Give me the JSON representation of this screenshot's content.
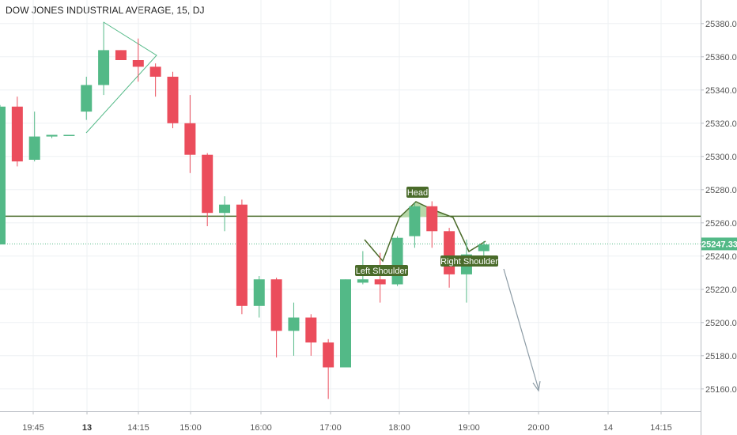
{
  "chart_data": {
    "type": "candlestick",
    "title": "DOW JONES INDUSTRIAL AVERAGE, 15, DJ",
    "xlabel": "",
    "ylabel": "",
    "ylim": [
      25142,
      25388
    ],
    "grid": true,
    "y_ticks": [
      25160,
      25180,
      25200,
      25220,
      25240,
      25260,
      25280,
      25300,
      25320,
      25340,
      25360,
      25380
    ],
    "y_tick_labels": [
      "25160.00",
      "25180.00",
      "25200.00",
      "25220.00",
      "25240.00",
      "25260.00",
      "25280.00",
      "25300.00",
      "25320.00",
      "25340.00",
      "25360.00",
      "25380.00"
    ],
    "x_ticks": [
      {
        "label": "19:45",
        "bold": false
      },
      {
        "label": "13",
        "bold": true
      },
      {
        "label": "14:15",
        "bold": false
      },
      {
        "label": "15:00",
        "bold": false
      },
      {
        "label": "16:00",
        "bold": false
      },
      {
        "label": "17:00",
        "bold": false
      },
      {
        "label": "18:00",
        "bold": false
      },
      {
        "label": "19:00",
        "bold": false
      },
      {
        "label": "20:00",
        "bold": false
      },
      {
        "label": "14",
        "bold": false
      },
      {
        "label": "14:15",
        "bold": false
      }
    ],
    "colors": {
      "up": "#53b987",
      "down": "#eb4d5c",
      "pattern": "#4a6b2a",
      "price_line": "#53b987",
      "arrow": "#8c9ba5",
      "grid": "#eef0f3"
    },
    "candles": [
      {
        "o": 25247,
        "h": 25331,
        "l": 25247,
        "c": 25330
      },
      {
        "o": 25330,
        "h": 25336,
        "l": 25294,
        "c": 25297
      },
      {
        "o": 25298,
        "h": 25327,
        "l": 25297,
        "c": 25312
      },
      {
        "o": 25312,
        "h": 25313,
        "l": 25311,
        "c": 25313
      },
      {
        "o": 25313,
        "h": 25313,
        "l": 25313,
        "c": 25313
      },
      {
        "o": 25327,
        "h": 25348,
        "l": 25322,
        "c": 25343
      },
      {
        "o": 25343,
        "h": 25381,
        "l": 25337,
        "c": 25364
      },
      {
        "o": 25364,
        "h": 25364,
        "l": 25358,
        "c": 25358
      },
      {
        "o": 25358,
        "h": 25371,
        "l": 25345,
        "c": 25354
      },
      {
        "o": 25354,
        "h": 25356,
        "l": 25336,
        "c": 25348
      },
      {
        "o": 25348,
        "h": 25351,
        "l": 25317,
        "c": 25320
      },
      {
        "o": 25320,
        "h": 25337,
        "l": 25290,
        "c": 25301
      },
      {
        "o": 25301,
        "h": 25302,
        "l": 25258,
        "c": 25266
      },
      {
        "o": 25266,
        "h": 25276,
        "l": 25255,
        "c": 25271
      },
      {
        "o": 25271,
        "h": 25274,
        "l": 25205,
        "c": 25210
      },
      {
        "o": 25210,
        "h": 25228,
        "l": 25203,
        "c": 25226
      },
      {
        "o": 25226,
        "h": 25227,
        "l": 25179,
        "c": 25195
      },
      {
        "o": 25195,
        "h": 25212,
        "l": 25180,
        "c": 25203
      },
      {
        "o": 25203,
        "h": 25205,
        "l": 25180,
        "c": 25188
      },
      {
        "o": 25188,
        "h": 25190,
        "l": 25154,
        "c": 25173
      },
      {
        "o": 25173,
        "h": 25226,
        "l": 25173,
        "c": 25226
      },
      {
        "o": 25224,
        "h": 25243,
        "l": 25223,
        "c": 25226
      },
      {
        "o": 25226,
        "h": 25242,
        "l": 25212,
        "c": 25223
      },
      {
        "o": 25223,
        "h": 25252,
        "l": 25222,
        "c": 25251
      },
      {
        "o": 25252,
        "h": 25272,
        "l": 25245,
        "c": 25270
      },
      {
        "o": 25270,
        "h": 25273,
        "l": 25245,
        "c": 25255
      },
      {
        "o": 25255,
        "h": 25257,
        "l": 25221,
        "c": 25229
      },
      {
        "o": 25229,
        "h": 25250,
        "l": 25212,
        "c": 25241
      },
      {
        "o": 25243,
        "h": 25249,
        "l": 25240,
        "c": 25247
      }
    ],
    "last_price": {
      "value": 25247.33,
      "label": "25247.33"
    },
    "neckline": {
      "value": 25264
    },
    "annotations": [
      {
        "label": "Head"
      },
      {
        "label": "Left Shoulder"
      },
      {
        "label": "Right Shoulder"
      }
    ]
  }
}
